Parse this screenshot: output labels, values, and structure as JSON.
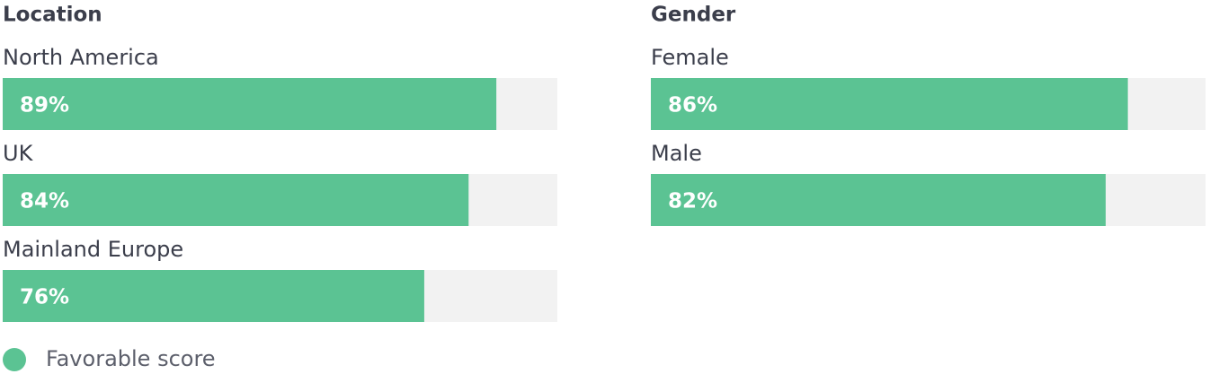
{
  "chart_data": [
    {
      "type": "bar",
      "title": "Location",
      "categories": [
        "North America",
        "UK",
        "Mainland Europe"
      ],
      "series": [
        {
          "name": "Favorable score",
          "color": "#5bc393",
          "values": [
            89,
            84,
            76
          ],
          "value_labels": [
            "89%",
            "84%",
            "76%"
          ]
        }
      ],
      "xlim": [
        0,
        100
      ]
    },
    {
      "type": "bar",
      "title": "Gender",
      "categories": [
        "Female",
        "Male"
      ],
      "series": [
        {
          "name": "Favorable score",
          "color": "#5bc393",
          "values": [
            86,
            82
          ],
          "value_labels": [
            "86%",
            "82%"
          ]
        }
      ],
      "xlim": [
        0,
        100
      ]
    }
  ]
}
